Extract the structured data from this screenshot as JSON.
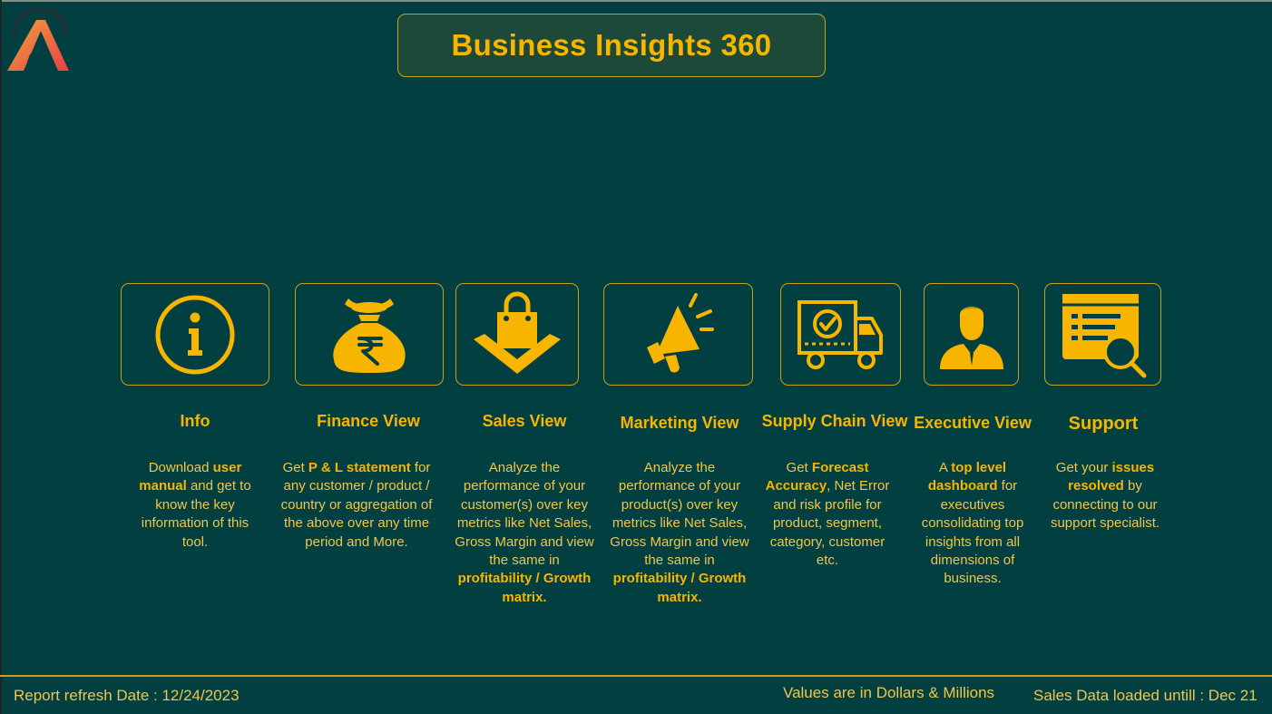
{
  "app": {
    "title": "Business Insights 360",
    "logo": "atliq-logo"
  },
  "colors": {
    "background": "#013f41",
    "accent": "#f7b500",
    "title_box": "#1d4a38",
    "tile_border": "#c9a21c"
  },
  "views": [
    {
      "id": "info",
      "icon": "info-icon",
      "heading": "Info",
      "desc": {
        "a": "Download ",
        "b": "user manual",
        "c": " and get to know the key information of this tool."
      }
    },
    {
      "id": "finance",
      "icon": "money-bag-rupee-icon",
      "heading": "Finance View",
      "desc": {
        "a": "Get ",
        "b": "P & L statement",
        "c": " for any customer / product / country or aggregation of the above over any time period and More."
      }
    },
    {
      "id": "sales",
      "icon": "shopping-bag-icon",
      "heading": "Sales View",
      "desc": {
        "a": "Analyze the performance of your customer(s) over key metrics like Net Sales, Gross Margin and view the same in ",
        "b": "profitability / Growth matrix."
      }
    },
    {
      "id": "marketing",
      "icon": "megaphone-icon",
      "heading": "Marketing View",
      "desc": {
        "a": "Analyze the performance of your product(s) over key metrics like Net Sales, Gross Margin and view the same in ",
        "b": "profitability / Growth matrix."
      }
    },
    {
      "id": "supply",
      "icon": "delivery-truck-icon",
      "heading": "Supply Chain View",
      "desc": {
        "a": "Get ",
        "b": "Forecast Accuracy",
        "c": ", Net Error and risk profile for product, segment, category, customer etc."
      }
    },
    {
      "id": "executive",
      "icon": "executive-person-icon",
      "heading": "Executive View",
      "desc": {
        "a": "A ",
        "b": "top level dashboard",
        "c": " for executives consolidating top insights from all dimensions of business."
      }
    },
    {
      "id": "support",
      "icon": "document-search-icon",
      "heading": "Support",
      "desc": {
        "a": "Get your ",
        "b": "issues resolved",
        "c": " by connecting to our support specialist."
      }
    }
  ],
  "footer": {
    "refresh": "Report refresh Date : 12/24/2023",
    "units": "Values are in Dollars & Millions",
    "loaded": "Sales Data loaded untill : Dec 21"
  }
}
